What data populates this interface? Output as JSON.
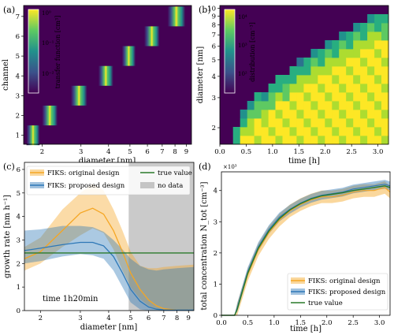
{
  "chart_data": [
    {
      "id": "a",
      "type": "heatmap",
      "panel_label": "(a)",
      "xlabel": "diameter [nm]",
      "ylabel": "channel",
      "x_ticks": [
        "2",
        "3",
        "4",
        "5",
        "6",
        "7",
        "8",
        "9"
      ],
      "y_ticks": [
        "1",
        "2",
        "3",
        "4",
        "5",
        "6",
        "7"
      ],
      "colorbar": {
        "label": "transfer function [cm³]",
        "ticks": [
          "10⁰",
          "10⁻¹",
          "10⁻²"
        ]
      },
      "channels": [
        {
          "channel": 1,
          "d_min": 1.7,
          "d_max": 1.95
        },
        {
          "channel": 2,
          "d_min": 2.0,
          "d_max": 2.35
        },
        {
          "channel": 3,
          "d_min": 2.7,
          "d_max": 3.2
        },
        {
          "channel": 4,
          "d_min": 3.6,
          "d_max": 4.2
        },
        {
          "channel": 5,
          "d_min": 4.6,
          "d_max": 5.3
        },
        {
          "channel": 6,
          "d_min": 5.8,
          "d_max": 6.8
        },
        {
          "channel": 7,
          "d_min": 7.4,
          "d_max": 8.9
        }
      ],
      "colors": {
        "background": "#440154",
        "peak": "#fde725",
        "mid": "#21918c"
      }
    },
    {
      "id": "b",
      "type": "heatmap",
      "panel_label": "(b)",
      "xlabel": "time [h]",
      "ylabel": "diameter [nm]",
      "x_ticks": [
        "0.0",
        "0.5",
        "1.0",
        "1.5",
        "2.0",
        "2.5",
        "3.0"
      ],
      "y_ticks": [
        "2",
        "3",
        "4",
        "5",
        "6",
        "7",
        "8",
        "9",
        "10"
      ],
      "colorbar": {
        "label": "distribution [cm⁻³]",
        "ticks": [
          "10⁴",
          "10³",
          "10²"
        ]
      },
      "growth_front": [
        {
          "t": 0.25,
          "d": 1.7
        },
        {
          "t": 0.5,
          "d": 2.6
        },
        {
          "t": 1.0,
          "d": 3.7
        },
        {
          "t": 1.5,
          "d": 4.8
        },
        {
          "t": 2.0,
          "d": 6.2
        },
        {
          "t": 2.5,
          "d": 7.8
        },
        {
          "t": 3.0,
          "d": 9.5
        }
      ]
    },
    {
      "id": "c",
      "type": "line",
      "panel_label": "(c)",
      "xlabel": "diameter [nm]",
      "ylabel": "growth rate [nm h⁻¹]",
      "annotation": "time 1h20min",
      "x_ticks": [
        "2",
        "3",
        "4",
        "5",
        "6",
        "7",
        "8",
        "9"
      ],
      "ylim": [
        0,
        6.3
      ],
      "y_ticks": [
        "0",
        "1",
        "2",
        "3",
        "4",
        "5",
        "6"
      ],
      "legend": {
        "placement": "top",
        "items": [
          "FIKS: original design",
          "FIKS: proposed design",
          "true value",
          "no data"
        ]
      },
      "no_data_range": [
        4.9,
        9.5
      ],
      "true_value": 2.45,
      "series": [
        {
          "name": "FIKS: original design",
          "color": "#f5a623",
          "x": [
            1.7,
            2.0,
            2.5,
            3.0,
            3.4,
            3.8,
            4.2,
            4.6,
            5.0,
            5.5,
            6.0,
            6.5,
            7.0,
            8.0,
            9.5
          ],
          "y": [
            2.2,
            2.5,
            3.4,
            4.15,
            4.35,
            4.1,
            3.4,
            2.5,
            1.6,
            0.9,
            0.45,
            0.2,
            0.08,
            0.02,
            0.01
          ],
          "lo": [
            1.7,
            2.0,
            2.7,
            3.2,
            3.5,
            3.3,
            2.6,
            1.7,
            1.0,
            0.5,
            0.2,
            0.05,
            0.0,
            0.0,
            0.0
          ],
          "hi": [
            2.7,
            3.1,
            4.3,
            5.0,
            5.4,
            5.1,
            4.3,
            3.4,
            2.5,
            1.9,
            1.8,
            1.8,
            1.85,
            1.9,
            1.95
          ]
        },
        {
          "name": "FIKS: proposed design",
          "color": "#2e78b7",
          "x": [
            1.7,
            2.0,
            2.5,
            3.0,
            3.4,
            3.8,
            4.2,
            4.6,
            5.0,
            5.5,
            6.0,
            6.5,
            7.0,
            8.0,
            9.5
          ],
          "y": [
            2.55,
            2.65,
            2.8,
            2.9,
            2.9,
            2.75,
            2.3,
            1.6,
            0.9,
            0.4,
            0.15,
            0.06,
            0.03,
            0.02,
            0.02
          ],
          "lo": [
            2.0,
            2.1,
            2.3,
            2.4,
            2.35,
            2.2,
            1.7,
            1.0,
            0.35,
            0.05,
            0.0,
            0.0,
            0.0,
            0.0,
            0.0
          ],
          "hi": [
            3.4,
            3.45,
            3.6,
            3.6,
            3.55,
            3.35,
            3.0,
            2.6,
            2.2,
            1.9,
            1.75,
            1.7,
            1.75,
            1.8,
            1.85
          ]
        }
      ],
      "true_color": "#2a7a2a"
    },
    {
      "id": "d",
      "type": "line",
      "panel_label": "(d)",
      "xlabel": "time [h]",
      "ylabel": "total concentration N_tot [cm⁻³]",
      "offset_text": "×10³",
      "xlim": [
        0,
        3.2
      ],
      "ylim": [
        0,
        4.6
      ],
      "x_ticks": [
        "0.0",
        "0.5",
        "1.0",
        "1.5",
        "2.0",
        "2.5",
        "3.0"
      ],
      "y_ticks": [
        "0",
        "1",
        "2",
        "3",
        "4"
      ],
      "legend": {
        "placement": "lower-right",
        "items": [
          "FIKS: original design",
          "FIKS: proposed design",
          "true value"
        ]
      },
      "series": [
        {
          "name": "FIKS: original design",
          "color": "#f5a623",
          "x": [
            0,
            0.25,
            0.3,
            0.5,
            0.7,
            0.9,
            1.1,
            1.3,
            1.5,
            1.7,
            1.9,
            2.1,
            2.3,
            2.5,
            2.7,
            2.9,
            3.1,
            3.2
          ],
          "y": [
            0,
            0,
            0.2,
            1.3,
            2.1,
            2.65,
            3.05,
            3.35,
            3.55,
            3.7,
            3.8,
            3.8,
            3.85,
            3.95,
            4.0,
            4.0,
            4.1,
            3.95
          ],
          "band": 0.2
        },
        {
          "name": "FIKS: proposed design",
          "color": "#2e78b7",
          "x": [
            0,
            0.25,
            0.3,
            0.5,
            0.7,
            0.9,
            1.1,
            1.3,
            1.5,
            1.7,
            1.9,
            2.1,
            2.3,
            2.5,
            2.7,
            2.9,
            3.1,
            3.2
          ],
          "y": [
            0,
            0,
            0.25,
            1.4,
            2.2,
            2.75,
            3.15,
            3.4,
            3.6,
            3.75,
            3.85,
            3.9,
            3.95,
            4.05,
            4.1,
            4.15,
            4.2,
            4.15
          ],
          "band": 0.14
        },
        {
          "name": "true value",
          "color": "#2a7a2a",
          "x": [
            0,
            0.25,
            0.3,
            0.5,
            0.7,
            0.9,
            1.1,
            1.3,
            1.5,
            1.7,
            1.9,
            2.1,
            2.3,
            2.5,
            2.7,
            2.9,
            3.1,
            3.2
          ],
          "y": [
            0,
            0,
            0.2,
            1.35,
            2.15,
            2.7,
            3.1,
            3.38,
            3.58,
            3.73,
            3.83,
            3.88,
            3.93,
            4.0,
            4.05,
            4.1,
            4.15,
            4.1
          ]
        }
      ]
    }
  ]
}
